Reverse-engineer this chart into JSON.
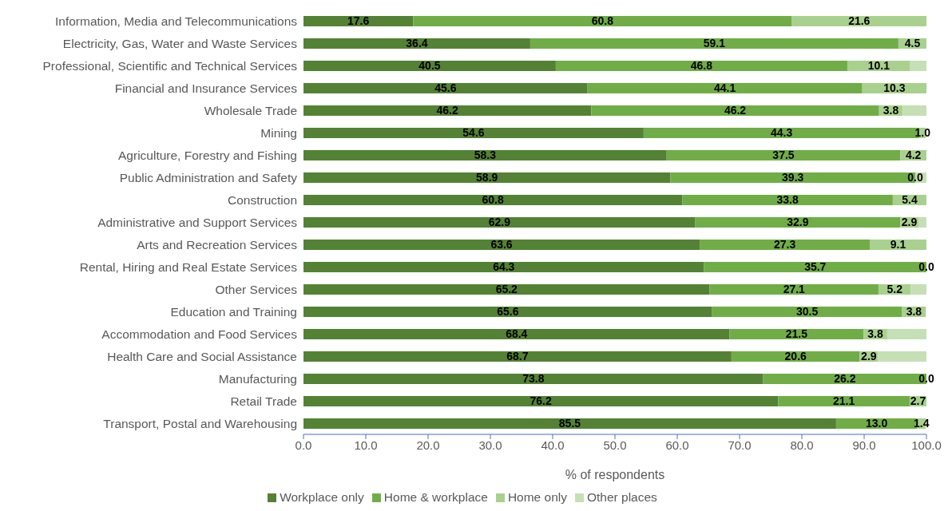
{
  "chart_data": {
    "type": "bar",
    "orientation": "horizontal",
    "stacked": true,
    "categories": [
      "Information, Media and Telecommunications",
      "Electricity, Gas, Water and Waste Services",
      "Professional, Scientific and Technical Services",
      "Financial and Insurance Services",
      "Wholesale Trade",
      "Mining",
      "Agriculture, Forestry and Fishing",
      "Public Administration and Safety",
      "Construction",
      "Administrative and Support Services",
      "Arts and Recreation Services",
      "Rental, Hiring and Real Estate Services",
      "Other Services",
      "Education and Training",
      "Accommodation and Food Services",
      "Health Care and Social Assistance",
      "Manufacturing",
      "Retail Trade",
      "Transport, Postal and Warehousing"
    ],
    "series": [
      {
        "name": "Workplace only",
        "color": "#548235",
        "values": [
          17.6,
          36.4,
          40.5,
          45.6,
          46.2,
          54.6,
          58.3,
          58.9,
          60.8,
          62.9,
          63.6,
          64.3,
          65.2,
          65.6,
          68.4,
          68.7,
          73.8,
          76.2,
          85.5
        ],
        "value_labels": [
          "17.6",
          "36.4",
          "40.5",
          "45.6",
          "46.2",
          "54.6",
          "58.3",
          "58.9",
          "60.8",
          "62.9",
          "63.6",
          "64.3",
          "65.2",
          "65.6",
          "68.4",
          "68.7",
          "73.8",
          "76.2",
          "85.5"
        ]
      },
      {
        "name": "Home & workplace",
        "color": "#70ad47",
        "values": [
          60.8,
          59.1,
          46.8,
          44.1,
          46.2,
          44.3,
          37.5,
          39.3,
          33.8,
          32.9,
          27.3,
          35.7,
          27.1,
          30.5,
          21.5,
          20.6,
          26.2,
          21.1,
          13.0
        ],
        "value_labels": [
          "60.8",
          "59.1",
          "46.8",
          "44.1",
          "46.2",
          "44.3",
          "37.5",
          "39.3",
          "33.8",
          "32.9",
          "27.3",
          "35.7",
          "27.1",
          "30.5",
          "21.5",
          "20.6",
          "26.2",
          "21.1",
          "13.0"
        ]
      },
      {
        "name": "Home only",
        "color": "#a9d18e",
        "values": [
          21.6,
          4.5,
          10.1,
          10.3,
          3.8,
          1.0,
          4.2,
          0.0,
          5.4,
          2.9,
          9.1,
          0.0,
          5.2,
          3.8,
          3.8,
          2.9,
          0.0,
          2.7,
          1.4
        ],
        "value_labels": [
          "21.6",
          "4.5",
          "10.1",
          "10.3",
          "3.8",
          "1.0",
          "4.2",
          "0.0",
          "5.4",
          "2.9",
          "9.1",
          "0.0",
          "5.2",
          "3.8",
          "3.8",
          "2.9",
          "0.0",
          "2.7",
          "1.4"
        ]
      },
      {
        "name": "Other places",
        "color": "#c5e0b4",
        "values": [
          0,
          0,
          2.6,
          0,
          3.8,
          0,
          0,
          1.8,
          0,
          1.3,
          0,
          0,
          2.5,
          0,
          6.3,
          7.8,
          0,
          0,
          0
        ]
      }
    ],
    "xlabel": "% of respondents",
    "xlim": [
      0,
      100
    ],
    "xticks": [
      {
        "value": 0,
        "label": "0.0"
      },
      {
        "value": 10,
        "label": "10.0"
      },
      {
        "value": 20,
        "label": "20.0"
      },
      {
        "value": 30,
        "label": "30.0"
      },
      {
        "value": 40,
        "label": "40.0"
      },
      {
        "value": 50,
        "label": "50.0"
      },
      {
        "value": 60,
        "label": "60.0"
      },
      {
        "value": 70,
        "label": "70.0"
      },
      {
        "value": 80,
        "label": "80.0"
      },
      {
        "value": 90,
        "label": "90.0"
      },
      {
        "value": 100,
        "label": "100.0"
      }
    ],
    "grid": false,
    "legend": "bottom"
  }
}
